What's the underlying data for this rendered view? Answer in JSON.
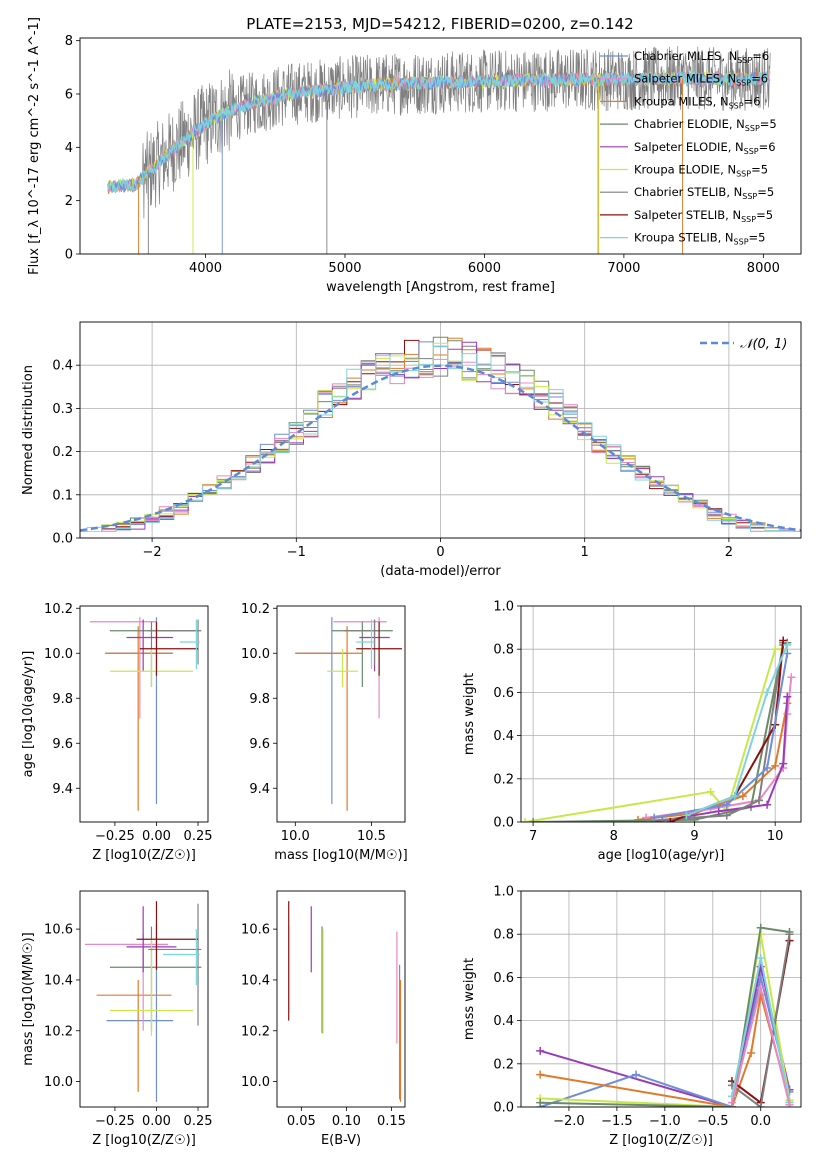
{
  "figure_title": "PLATE=2153, MJD=54212, FIBERID=0200, z=0.142",
  "colors": {
    "blue": "#6f8ed8",
    "orange": "#e07a2a",
    "pink": "#e888c4",
    "green": "#6a8a6a",
    "purple": "#9a3bb8",
    "yellowgreen": "#c8e84a",
    "gray": "#7f7f7f",
    "darkred": "#8b1010",
    "cyan": "#7ed4dc",
    "ncurve": "#5a8ad8"
  },
  "legend_entries": [
    {
      "name": "Chabrier MILES",
      "n": "6",
      "color": "blue"
    },
    {
      "name": "Salpeter MILES",
      "n": "6",
      "color": "pink"
    },
    {
      "name": "Kroupa MILES",
      "n": "6",
      "color": "orange"
    },
    {
      "name": "Chabrier ELODIE",
      "n": "5",
      "color": "green"
    },
    {
      "name": "Salpeter ELODIE",
      "n": "6",
      "color": "purple"
    },
    {
      "name": "Kroupa ELODIE",
      "n": "5",
      "color": "yellowgreen"
    },
    {
      "name": "Chabrier STELIB",
      "n": "5",
      "color": "gray"
    },
    {
      "name": "Salpeter STELIB",
      "n": "5",
      "color": "darkred"
    },
    {
      "name": "Kroupa STELIB",
      "n": "5",
      "color": "cyan"
    }
  ],
  "chart_data": [
    {
      "id": "spectrum",
      "type": "line",
      "xlabel": "wavelength [Angstrom, rest frame]",
      "ylabel": "Flux [f_λ 10^-17 erg cm^-2 s^-1 A^-1]",
      "xlim": [
        3100,
        8270
      ],
      "ylim": [
        0,
        8.1
      ],
      "xticks": [
        4000,
        5000,
        6000,
        7000,
        8000
      ],
      "yticks": [
        0,
        2,
        4,
        6,
        8
      ],
      "continuum": {
        "x": [
          3300,
          3500,
          3700,
          3900,
          4100,
          4300,
          4600,
          5000,
          5400,
          5800,
          6200,
          6600,
          7000,
          7400,
          7800,
          8050
        ],
        "y": [
          2.5,
          2.6,
          3.6,
          4.5,
          5.2,
          5.6,
          6.0,
          6.25,
          6.4,
          6.45,
          6.5,
          6.55,
          6.55,
          6.6,
          6.55,
          6.6
        ]
      },
      "legend_position": "top-right"
    },
    {
      "id": "residuals",
      "type": "histogram",
      "xlabel": "(data-model)/error",
      "ylabel": "Normed distribution",
      "xlim": [
        -2.5,
        2.5
      ],
      "ylim": [
        0,
        0.5
      ],
      "xticks": [
        -2,
        -1,
        0,
        1,
        2
      ],
      "yticks": [
        0.0,
        0.1,
        0.2,
        0.3,
        0.4
      ],
      "grid": true,
      "legend": "𝒩(0, 1)",
      "legend_position": "top-right"
    },
    {
      "id": "age_vs_Z",
      "type": "errorbar",
      "xlabel": "Z [log10(Z/Z☉)]",
      "ylabel": "age  [log10(age/yr)]",
      "xlim": [
        -0.46,
        0.31
      ],
      "ylim": [
        9.25,
        10.21
      ],
      "xticks": [
        -0.25,
        0.0,
        0.25
      ],
      "yticks": [
        9.4,
        9.6,
        9.8,
        10.0,
        10.2
      ],
      "points": [
        {
          "color": "blue",
          "x": 0.0,
          "xerr": [
            0.3,
            0.1
          ],
          "y": 10.0,
          "yerr": [
            0.67,
            0.16
          ]
        },
        {
          "color": "orange",
          "x": -0.11,
          "xerr": [
            0.2,
            0.2
          ],
          "y": 10.0,
          "yerr": [
            0.7,
            0.12
          ]
        },
        {
          "color": "pink",
          "x": -0.1,
          "xerr": [
            0.3,
            0.1
          ],
          "y": 10.14,
          "yerr": [
            0.43,
            0.02
          ]
        },
        {
          "color": "green",
          "x": -0.03,
          "xerr": [
            0.25,
            0.3
          ],
          "y": 10.1,
          "yerr": [
            0.25,
            0.04
          ]
        },
        {
          "color": "purple",
          "x": -0.08,
          "xerr": [
            0.1,
            0.18
          ],
          "y": 10.07,
          "yerr": [
            0.15,
            0.08
          ]
        },
        {
          "color": "yellowgreen",
          "x": -0.03,
          "xerr": [
            0.25,
            0.25
          ],
          "y": 9.92,
          "yerr": [
            0.07,
            0.1
          ]
        },
        {
          "color": "gray",
          "x": 0.25,
          "xerr": [
            0.3,
            0.0
          ],
          "y": 10.1,
          "yerr": [
            0.15,
            0.05
          ]
        },
        {
          "color": "darkred",
          "x": 0.0,
          "xerr": [
            0.1,
            0.25
          ],
          "y": 10.02,
          "yerr": [
            0.12,
            0.12
          ]
        },
        {
          "color": "cyan",
          "x": 0.24,
          "xerr": [
            0.1,
            0.02
          ],
          "y": 10.05,
          "yerr": [
            0.12,
            0.1
          ]
        }
      ]
    },
    {
      "id": "age_vs_mass",
      "type": "errorbar",
      "xlabel": "mass [log10(M/M☉)]",
      "ylabel": "",
      "xlim": [
        9.88,
        10.72
      ],
      "ylim": [
        9.25,
        10.21
      ],
      "xticks": [
        10.0,
        10.5
      ],
      "yticks": [
        9.4,
        9.6,
        9.8,
        10.0,
        10.2
      ],
      "points": [
        {
          "color": "blue",
          "x": 10.24,
          "xerr": [
            0.24,
            0.1
          ],
          "y": 10.0,
          "yerr": [
            0.67,
            0.16
          ]
        },
        {
          "color": "orange",
          "x": 10.34,
          "xerr": [
            0.34,
            0.1
          ],
          "y": 10.0,
          "yerr": [
            0.7,
            0.12
          ]
        },
        {
          "color": "pink",
          "x": 10.55,
          "xerr": [
            0.3,
            0.05
          ],
          "y": 10.14,
          "yerr": [
            0.43,
            0.02
          ]
        },
        {
          "color": "green",
          "x": 10.44,
          "xerr": [
            0.2,
            0.2
          ],
          "y": 10.1,
          "yerr": [
            0.25,
            0.04
          ]
        },
        {
          "color": "purple",
          "x": 10.52,
          "xerr": [
            0.1,
            0.1
          ],
          "y": 10.07,
          "yerr": [
            0.15,
            0.08
          ]
        },
        {
          "color": "yellowgreen",
          "x": 10.31,
          "xerr": [
            0.1,
            0.1
          ],
          "y": 9.92,
          "yerr": [
            0.07,
            0.1
          ]
        },
        {
          "color": "gray",
          "x": 10.52,
          "xerr": [
            0.2,
            0.02
          ],
          "y": 10.1,
          "yerr": [
            0.15,
            0.05
          ]
        },
        {
          "color": "darkred",
          "x": 10.55,
          "xerr": [
            0.15,
            0.15
          ],
          "y": 10.02,
          "yerr": [
            0.12,
            0.12
          ]
        },
        {
          "color": "cyan",
          "x": 10.5,
          "xerr": [
            0.1,
            0.02
          ],
          "y": 10.05,
          "yerr": [
            0.12,
            0.1
          ]
        }
      ]
    },
    {
      "id": "massweight_vs_age",
      "type": "line",
      "xlabel": "age  [log10(age/yr)]",
      "ylabel": "mass weight",
      "xlim": [
        6.85,
        10.32
      ],
      "ylim": [
        0,
        1.0
      ],
      "xticks": [
        7,
        8,
        9,
        10
      ],
      "yticks": [
        0.0,
        0.2,
        0.4,
        0.6,
        0.8,
        1.0
      ],
      "grid": true,
      "series": [
        {
          "color": "yellowgreen",
          "x": [
            6.9,
            9.2,
            9.4,
            10.0,
            10.1
          ],
          "y": [
            0.0,
            0.14,
            0.05,
            0.8,
            0.8
          ]
        },
        {
          "color": "orange",
          "x": [
            8.3,
            9.0,
            9.6,
            10.0,
            10.15
          ],
          "y": [
            0.01,
            0.04,
            0.12,
            0.26,
            0.55
          ]
        },
        {
          "color": "pink",
          "x": [
            8.4,
            9.2,
            9.8,
            10.1,
            10.15,
            10.2
          ],
          "y": [
            0.02,
            0.06,
            0.1,
            0.25,
            0.5,
            0.67
          ]
        },
        {
          "color": "green",
          "x": [
            7.0,
            9.0,
            9.7,
            10.1,
            10.15
          ],
          "y": [
            0.0,
            0.01,
            0.07,
            0.82,
            0.83
          ]
        },
        {
          "color": "purple",
          "x": [
            8.5,
            9.3,
            9.9,
            10.1,
            10.15
          ],
          "y": [
            0.0,
            0.05,
            0.08,
            0.27,
            0.58
          ]
        },
        {
          "color": "gray",
          "x": [
            8.6,
            9.4,
            9.8,
            10.1
          ],
          "y": [
            0.01,
            0.03,
            0.1,
            0.83
          ]
        },
        {
          "color": "darkred",
          "x": [
            8.7,
            9.5,
            10.0,
            10.1
          ],
          "y": [
            0.0,
            0.12,
            0.45,
            0.84
          ]
        },
        {
          "color": "blue",
          "x": [
            8.5,
            9.4,
            9.9,
            10.15
          ],
          "y": [
            0.02,
            0.08,
            0.25,
            0.78
          ]
        },
        {
          "color": "cyan",
          "x": [
            8.9,
            9.5,
            9.9,
            10.15
          ],
          "y": [
            0.03,
            0.12,
            0.6,
            0.82
          ]
        }
      ]
    },
    {
      "id": "mass_vs_Z",
      "type": "errorbar",
      "xlabel": "Z [log10(Z/Z☉)]",
      "ylabel": "mass [log10(M/M☉)]",
      "xlim": [
        -0.46,
        0.31
      ],
      "ylim": [
        9.9,
        10.75
      ],
      "xticks": [
        -0.25,
        0.0,
        0.25
      ],
      "yticks": [
        10.0,
        10.2,
        10.4,
        10.6
      ],
      "points": [
        {
          "color": "blue",
          "x": 0.0,
          "xerr": [
            0.3,
            0.1
          ],
          "y": 10.24,
          "yerr": [
            0.32,
            0.38
          ]
        },
        {
          "color": "orange",
          "x": -0.11,
          "xerr": [
            0.25,
            0.2
          ],
          "y": 10.34,
          "yerr": [
            0.38,
            0.06
          ]
        },
        {
          "color": "pink",
          "x": -0.08,
          "xerr": [
            0.35,
            0.15
          ],
          "y": 10.54,
          "yerr": [
            0.34,
            0.04
          ]
        },
        {
          "color": "green",
          "x": -0.03,
          "xerr": [
            0.25,
            0.3
          ],
          "y": 10.45,
          "yerr": [
            0.25,
            0.16
          ]
        },
        {
          "color": "purple",
          "x": -0.08,
          "xerr": [
            0.1,
            0.2
          ],
          "y": 10.53,
          "yerr": [
            0.1,
            0.16
          ]
        },
        {
          "color": "yellowgreen",
          "x": -0.03,
          "xerr": [
            0.25,
            0.25
          ],
          "y": 10.28,
          "yerr": [
            0.1,
            0.28
          ]
        },
        {
          "color": "gray",
          "x": 0.25,
          "xerr": [
            0.3,
            0.02
          ],
          "y": 10.52,
          "yerr": [
            0.3,
            0.18
          ]
        },
        {
          "color": "darkred",
          "x": 0.0,
          "xerr": [
            0.12,
            0.25
          ],
          "y": 10.56,
          "yerr": [
            0.12,
            0.15
          ]
        },
        {
          "color": "cyan",
          "x": 0.24,
          "xerr": [
            0.2,
            0.02
          ],
          "y": 10.5,
          "yerr": [
            0.12,
            0.1
          ]
        }
      ]
    },
    {
      "id": "mass_vs_EBV",
      "type": "errorbar",
      "xlabel": "E(B-V)",
      "ylabel": "",
      "xlim": [
        0.023,
        0.165
      ],
      "ylim": [
        9.9,
        10.75
      ],
      "xticks": [
        0.05,
        0.1,
        0.15
      ],
      "yticks": [
        10.0,
        10.2,
        10.4,
        10.6
      ],
      "points": [
        {
          "color": "darkred",
          "x": 0.036,
          "y": 10.56,
          "yerr": [
            0.32,
            0.15
          ]
        },
        {
          "color": "cyan",
          "x": 0.037,
          "y": 10.45,
          "yerr": [
            0.18,
            0.16
          ]
        },
        {
          "color": "purple",
          "x": 0.061,
          "y": 10.53,
          "yerr": [
            0.1,
            0.16
          ]
        },
        {
          "color": "green",
          "x": 0.073,
          "y": 10.45,
          "yerr": [
            0.26,
            0.16
          ]
        },
        {
          "color": "yellowgreen",
          "x": 0.074,
          "y": 10.4,
          "yerr": [
            0.21,
            0.2
          ]
        },
        {
          "color": "pink",
          "x": 0.156,
          "y": 10.35,
          "yerr": [
            0.2,
            0.24
          ]
        },
        {
          "color": "blue",
          "x": 0.159,
          "y": 10.2,
          "yerr": [
            0.27,
            0.26
          ]
        },
        {
          "color": "orange",
          "x": 0.16,
          "y": 10.1,
          "yerr": [
            0.18,
            0.3
          ]
        }
      ]
    },
    {
      "id": "massweight_vs_Z",
      "type": "line",
      "xlabel": "Z [log10(Z/Z☉)]",
      "ylabel": "mass weight",
      "xlim": [
        -2.5,
        0.42
      ],
      "ylim": [
        0,
        1.0
      ],
      "xticks": [
        -2.0,
        -1.5,
        -1.0,
        -0.5,
        0.0
      ],
      "yticks": [
        0.0,
        0.2,
        0.4,
        0.6,
        0.8,
        1.0
      ],
      "grid": true,
      "series": [
        {
          "color": "purple",
          "x": [
            -2.3,
            -0.3,
            0.0,
            0.3
          ],
          "y": [
            0.26,
            0.0,
            0.65,
            0.08
          ]
        },
        {
          "color": "blue",
          "x": [
            -2.3,
            -1.3,
            -0.3,
            0.0,
            0.3
          ],
          "y": [
            0.0,
            0.15,
            0.0,
            0.6,
            0.07
          ]
        },
        {
          "color": "orange",
          "x": [
            -2.3,
            -0.3,
            -0.1,
            0.0,
            0.3
          ],
          "y": [
            0.15,
            0.0,
            0.25,
            0.52,
            0.03
          ]
        },
        {
          "color": "yellowgreen",
          "x": [
            -2.3,
            -0.3,
            0.0,
            0.3
          ],
          "y": [
            0.04,
            0.0,
            0.8,
            0.03
          ]
        },
        {
          "color": "green",
          "x": [
            -2.3,
            -0.3,
            0.0,
            0.3
          ],
          "y": [
            0.02,
            0.0,
            0.83,
            0.81
          ]
        },
        {
          "color": "darkred",
          "x": [
            -0.3,
            0.0,
            0.3
          ],
          "y": [
            0.12,
            0.02,
            0.77
          ]
        },
        {
          "color": "gray",
          "x": [
            -0.3,
            0.0,
            0.3
          ],
          "y": [
            0.1,
            0.0,
            0.8
          ]
        },
        {
          "color": "cyan",
          "x": [
            -0.3,
            0.0,
            0.3
          ],
          "y": [
            0.05,
            0.69,
            0.02
          ]
        },
        {
          "color": "pink",
          "x": [
            -0.3,
            0.0,
            0.3
          ],
          "y": [
            0.02,
            0.55,
            0.01
          ]
        }
      ]
    }
  ]
}
